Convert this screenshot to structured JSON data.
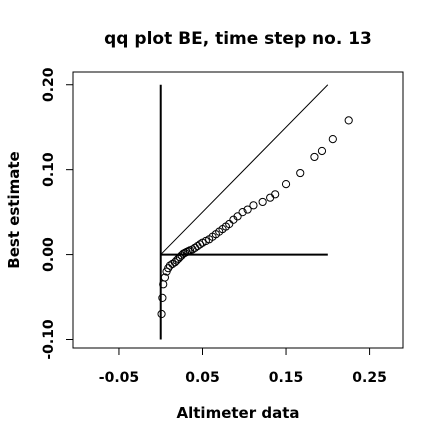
{
  "chart_data": {
    "type": "scatter",
    "title": "qq plot BE, time step no. 13",
    "xlabel": "Altimeter data",
    "ylabel": "Best estimate",
    "xlim": [
      -0.105,
      0.29
    ],
    "ylim": [
      -0.11,
      0.215
    ],
    "x_ticks": [
      -0.05,
      0.05,
      0.15,
      0.25
    ],
    "x_tick_labels": [
      "-0.05",
      "0.05",
      "0.15",
      "0.25"
    ],
    "y_ticks": [
      -0.1,
      0.0,
      0.1,
      0.2
    ],
    "y_tick_labels": [
      "-0.10",
      "0.00",
      "0.10",
      "0.20"
    ],
    "grid": false,
    "reference_lines": [
      {
        "kind": "identity",
        "x": [
          0.0,
          0.2
        ],
        "y": [
          0.0,
          0.2
        ]
      },
      {
        "kind": "vertical",
        "x": [
          0.0,
          0.0
        ],
        "y": [
          -0.1,
          0.2
        ]
      },
      {
        "kind": "horizontal",
        "x": [
          0.0,
          0.2
        ],
        "y": [
          0.0,
          0.0
        ]
      }
    ],
    "series": [
      {
        "points": [
          {
            "x": 0.001,
            "y": -0.07
          },
          {
            "x": 0.002,
            "y": -0.051
          },
          {
            "x": 0.003,
            "y": -0.035
          },
          {
            "x": 0.005,
            "y": -0.027
          },
          {
            "x": 0.007,
            "y": -0.02
          },
          {
            "x": 0.009,
            "y": -0.016
          },
          {
            "x": 0.011,
            "y": -0.013
          },
          {
            "x": 0.014,
            "y": -0.011
          },
          {
            "x": 0.017,
            "y": -0.009
          },
          {
            "x": 0.019,
            "y": -0.007
          },
          {
            "x": 0.021,
            "y": -0.005
          },
          {
            "x": 0.023,
            "y": -0.003
          },
          {
            "x": 0.025,
            "y": -0.001
          },
          {
            "x": 0.027,
            "y": 0.001
          },
          {
            "x": 0.029,
            "y": 0.002
          },
          {
            "x": 0.031,
            "y": 0.003
          },
          {
            "x": 0.033,
            "y": 0.004
          },
          {
            "x": 0.035,
            "y": 0.005
          },
          {
            "x": 0.038,
            "y": 0.006
          },
          {
            "x": 0.041,
            "y": 0.008
          },
          {
            "x": 0.044,
            "y": 0.01
          },
          {
            "x": 0.047,
            "y": 0.012
          },
          {
            "x": 0.05,
            "y": 0.014
          },
          {
            "x": 0.054,
            "y": 0.016
          },
          {
            "x": 0.058,
            "y": 0.018
          },
          {
            "x": 0.062,
            "y": 0.021
          },
          {
            "x": 0.066,
            "y": 0.024
          },
          {
            "x": 0.07,
            "y": 0.027
          },
          {
            "x": 0.074,
            "y": 0.03
          },
          {
            "x": 0.078,
            "y": 0.033
          },
          {
            "x": 0.082,
            "y": 0.036
          },
          {
            "x": 0.087,
            "y": 0.041
          },
          {
            "x": 0.092,
            "y": 0.045
          },
          {
            "x": 0.098,
            "y": 0.05
          },
          {
            "x": 0.104,
            "y": 0.053
          },
          {
            "x": 0.111,
            "y": 0.058
          },
          {
            "x": 0.122,
            "y": 0.062
          },
          {
            "x": 0.131,
            "y": 0.067
          },
          {
            "x": 0.137,
            "y": 0.071
          },
          {
            "x": 0.15,
            "y": 0.083
          },
          {
            "x": 0.167,
            "y": 0.096
          },
          {
            "x": 0.184,
            "y": 0.115
          },
          {
            "x": 0.193,
            "y": 0.122
          },
          {
            "x": 0.206,
            "y": 0.136
          },
          {
            "x": 0.225,
            "y": 0.158
          }
        ]
      }
    ]
  }
}
